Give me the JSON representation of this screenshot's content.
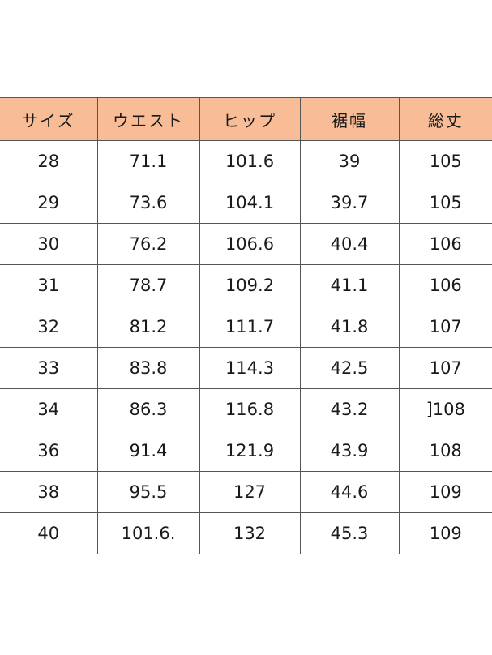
{
  "table": {
    "headers": [
      "サイズ",
      "ウエスト",
      "ヒップ",
      "裾幅",
      "総丈"
    ],
    "rows": [
      [
        "28",
        "71.1",
        "101.6",
        "39",
        "105"
      ],
      [
        "29",
        "73.6",
        "104.1",
        "39.7",
        "105"
      ],
      [
        "30",
        "76.2",
        "106.6",
        "40.4",
        "106"
      ],
      [
        "31",
        "78.7",
        "109.2",
        "41.1",
        "106"
      ],
      [
        "32",
        "81.2",
        "111.7",
        "41.8",
        "107"
      ],
      [
        "33",
        "83.8",
        "114.3",
        "42.5",
        "107"
      ],
      [
        "34",
        "86.3",
        "116.8",
        "43.2",
        "]108"
      ],
      [
        "36",
        "91.4",
        "121.9",
        "43.9",
        "108"
      ],
      [
        "38",
        "95.5",
        "127",
        "44.6",
        "109"
      ],
      [
        "40",
        "101.6.",
        "132",
        "45.3",
        "109"
      ]
    ]
  },
  "colors": {
    "header_background": "#f8bd96",
    "grid_lines": "#555555",
    "text": "#1a1a1a"
  }
}
